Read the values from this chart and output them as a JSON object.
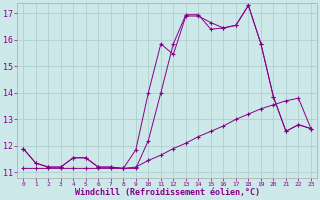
{
  "xlabel": "Windchill (Refroidissement éolien,°C)",
  "bg_color": "#cce8e8",
  "line_color": "#880088",
  "xmin": 0,
  "xmax": 23,
  "ymin": 11,
  "ymax": 17,
  "yticks": [
    11,
    12,
    13,
    14,
    15,
    16,
    17
  ],
  "xticks": [
    0,
    1,
    2,
    3,
    4,
    5,
    6,
    7,
    8,
    9,
    10,
    11,
    12,
    13,
    14,
    15,
    16,
    17,
    18,
    19,
    20,
    21,
    22,
    23
  ],
  "line1_x": [
    0,
    1,
    2,
    3,
    4,
    5,
    6,
    7,
    8,
    9,
    10,
    11,
    12,
    13,
    14,
    15,
    16,
    17,
    18,
    19,
    20,
    21,
    22,
    23
  ],
  "line1_y": [
    11.9,
    11.35,
    11.2,
    11.2,
    11.55,
    11.55,
    11.2,
    11.2,
    11.15,
    11.15,
    12.2,
    14.0,
    15.85,
    16.95,
    16.95,
    16.4,
    16.45,
    16.55,
    17.3,
    15.85,
    13.85,
    12.55,
    12.8,
    12.65
  ],
  "line2_x": [
    0,
    1,
    2,
    3,
    4,
    5,
    6,
    7,
    8,
    9,
    10,
    11,
    12,
    13,
    14,
    15,
    16,
    17,
    18,
    19,
    20,
    21,
    22,
    23
  ],
  "line2_y": [
    11.9,
    11.35,
    11.2,
    11.2,
    11.55,
    11.55,
    11.2,
    11.2,
    11.15,
    11.85,
    14.0,
    15.85,
    15.45,
    16.9,
    16.9,
    16.65,
    16.45,
    16.55,
    17.3,
    15.85,
    13.85,
    12.55,
    12.8,
    12.65
  ],
  "line3_x": [
    0,
    1,
    2,
    3,
    4,
    5,
    6,
    7,
    8,
    9,
    10,
    11,
    12,
    13,
    14,
    15,
    16,
    17,
    18,
    19,
    20,
    21,
    22,
    23
  ],
  "line3_y": [
    11.15,
    11.15,
    11.15,
    11.15,
    11.15,
    11.15,
    11.15,
    11.15,
    11.15,
    11.2,
    11.45,
    11.65,
    11.9,
    12.1,
    12.35,
    12.55,
    12.75,
    13.0,
    13.2,
    13.4,
    13.55,
    13.7,
    13.8,
    12.65
  ]
}
